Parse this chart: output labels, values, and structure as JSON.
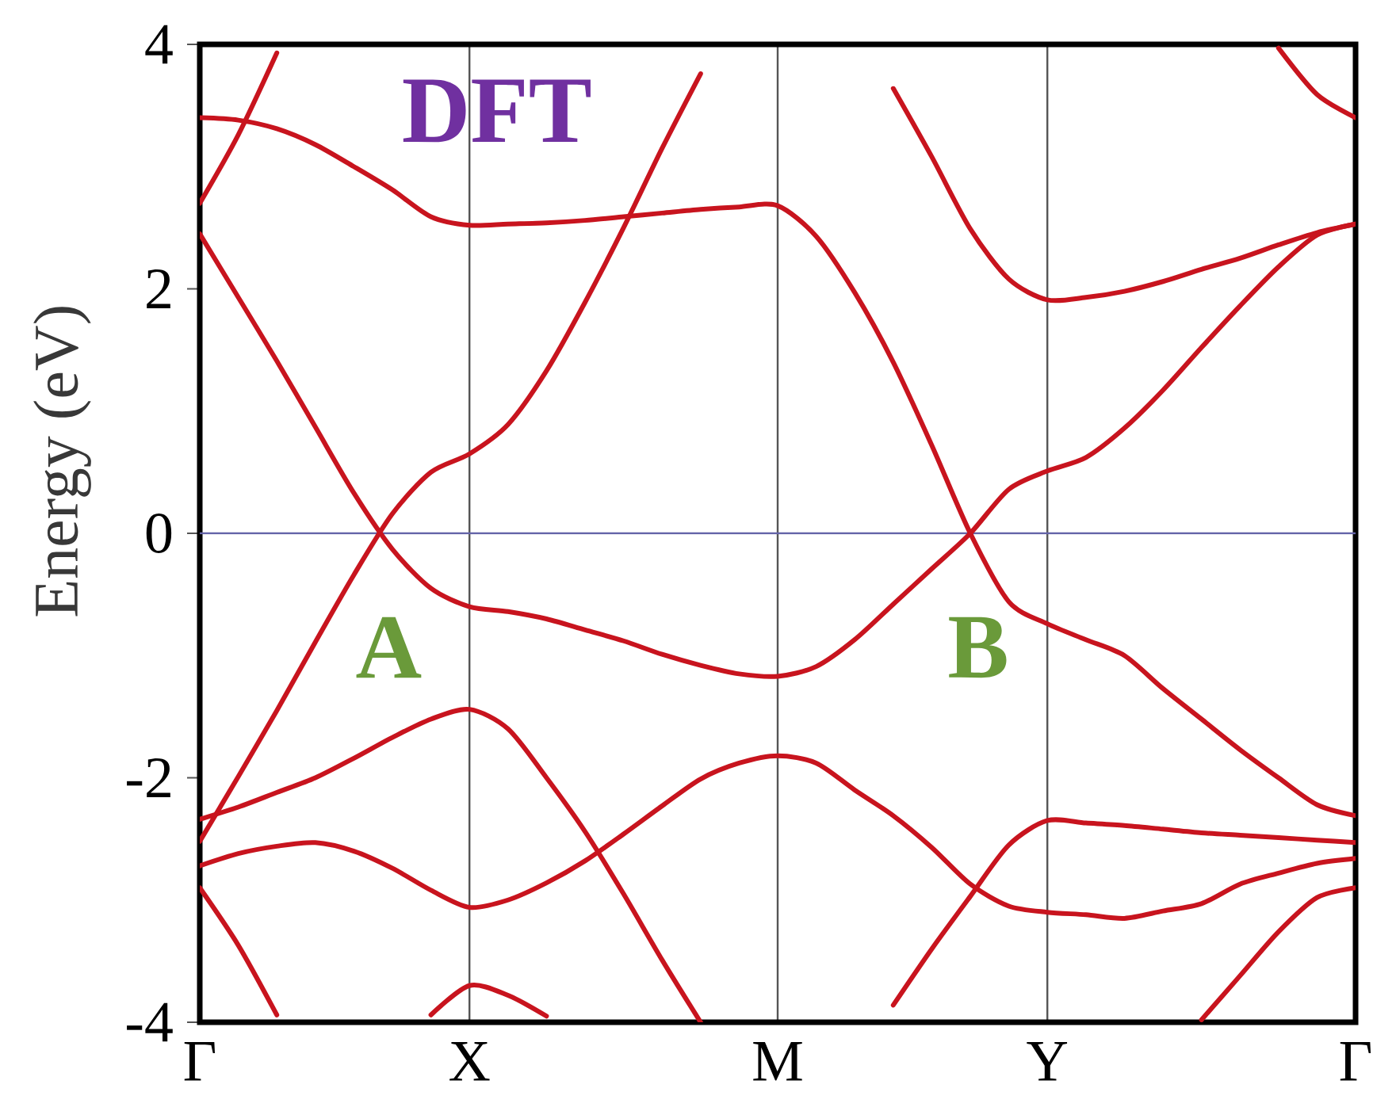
{
  "chart_data": {
    "type": "line",
    "title": "DFT",
    "ylabel": "Energy (eV)",
    "categories": [
      "Γ",
      null,
      null,
      null,
      null,
      null,
      null,
      "X",
      null,
      null,
      null,
      null,
      null,
      null,
      null,
      "M",
      null,
      null,
      null,
      null,
      null,
      null,
      "Y",
      null,
      null,
      null,
      null,
      null,
      null,
      null,
      "Γ"
    ],
    "ylim": [
      -4,
      4
    ],
    "yticks": [
      -4,
      -2,
      0,
      2,
      4
    ],
    "grid": "x",
    "line_style": "solid",
    "ref_lines": [
      {
        "axis": "y",
        "value": 0,
        "color": "#6464a8"
      }
    ],
    "annotations": [
      {
        "text": "A",
        "y": 0
      },
      {
        "text": "B",
        "y": 0
      }
    ],
    "series": [
      {
        "color": "#c8141e",
        "values": [
          2.7,
          3.26,
          3.93,
          null,
          null,
          null,
          null,
          null,
          null,
          null,
          null,
          null,
          null,
          null,
          null,
          null,
          null,
          null,
          null,
          null,
          null,
          null,
          null,
          null,
          null,
          null,
          null,
          null,
          null,
          null,
          null
        ]
      },
      {
        "color": "#c8141e",
        "values": [
          3.4,
          3.38,
          3.31,
          3.18,
          3.0,
          2.81,
          2.59,
          2.52,
          2.53,
          2.54,
          2.56,
          2.59,
          2.62,
          2.65,
          2.67,
          2.68,
          2.43,
          1.97,
          1.4,
          0.72,
          0,
          -0.56,
          -0.74,
          -0.87,
          -1.0,
          -1.27,
          -1.52,
          -1.77,
          -2.0,
          -2.22,
          -2.31
        ]
      },
      {
        "color": "#c8141e",
        "values": [
          2.45,
          1.93,
          1.41,
          0.87,
          0.33,
          -0.13,
          -0.45,
          -0.6,
          -0.64,
          -0.7,
          -0.79,
          -0.88,
          -0.99,
          -1.08,
          -1.15,
          -1.17,
          -1.09,
          -0.87,
          -0.58,
          -0.29,
          0,
          0.36,
          0.51,
          0.62,
          0.86,
          1.17,
          1.52,
          1.86,
          2.18,
          2.44,
          2.53
        ]
      },
      {
        "color": "#c8141e",
        "values": [
          -2.52,
          -1.99,
          -1.45,
          -0.89,
          -0.34,
          0.16,
          0.5,
          0.65,
          0.89,
          1.33,
          1.89,
          2.5,
          3.15,
          3.76,
          null,
          null,
          null,
          null,
          null,
          null,
          null,
          null,
          null,
          null,
          null,
          null,
          null,
          null,
          null,
          null,
          null
        ]
      },
      {
        "color": "#c8141e",
        "values": [
          null,
          null,
          null,
          null,
          null,
          null,
          null,
          null,
          null,
          null,
          null,
          null,
          null,
          null,
          null,
          null,
          null,
          null,
          3.64,
          3.08,
          2.49,
          2.08,
          1.91,
          1.93,
          1.98,
          2.06,
          2.16,
          2.25,
          2.36,
          2.46,
          2.53
        ]
      },
      {
        "color": "#c8141e",
        "values": [
          null,
          null,
          null,
          null,
          null,
          null,
          null,
          null,
          null,
          null,
          null,
          null,
          null,
          null,
          null,
          null,
          null,
          null,
          null,
          null,
          null,
          null,
          null,
          null,
          null,
          null,
          null,
          null,
          3.97,
          3.59,
          3.4
        ]
      },
      {
        "color": "#c8141e",
        "values": [
          -2.34,
          -2.24,
          -2.12,
          -2.0,
          -1.84,
          -1.67,
          -1.52,
          -1.44,
          -1.6,
          -2.0,
          -2.44,
          -2.95,
          -3.49,
          -4.0,
          null,
          null,
          null,
          null,
          null,
          null,
          null,
          null,
          null,
          null,
          null,
          null,
          null,
          null,
          null,
          null,
          null
        ]
      },
      {
        "color": "#c8141e",
        "values": [
          -2.72,
          -2.62,
          -2.56,
          -2.53,
          -2.6,
          -2.74,
          -2.92,
          -3.06,
          -3.0,
          -2.86,
          -2.68,
          -2.46,
          -2.23,
          -2.01,
          -1.88,
          -1.82,
          -1.88,
          -2.1,
          -2.31,
          -2.57,
          -2.87,
          -3.05,
          -3.1,
          -3.12,
          -3.15,
          -3.09,
          -3.03,
          -2.87,
          -2.78,
          -2.7,
          -2.66
        ]
      },
      {
        "color": "#c8141e",
        "values": [
          null,
          null,
          null,
          null,
          null,
          null,
          null,
          null,
          null,
          null,
          null,
          null,
          null,
          null,
          null,
          null,
          null,
          null,
          -3.86,
          -3.4,
          -2.97,
          -2.55,
          -2.35,
          -2.37,
          -2.39,
          -2.42,
          -2.45,
          -2.47,
          -2.49,
          -2.51,
          -2.53
        ]
      },
      {
        "color": "#c8141e",
        "values": [
          null,
          null,
          null,
          null,
          null,
          null,
          -3.94,
          -3.7,
          -3.78,
          -3.95,
          null,
          null,
          null,
          null,
          null,
          null,
          null,
          null,
          null,
          null,
          null,
          null,
          null,
          null,
          null,
          null,
          null,
          null,
          null,
          null,
          null
        ]
      },
      {
        "color": "#c8141e",
        "values": [
          -2.9,
          -3.37,
          -3.94,
          null,
          null,
          null,
          null,
          null,
          null,
          null,
          null,
          null,
          null,
          null,
          null,
          null,
          null,
          null,
          null,
          null,
          null,
          null,
          null,
          null,
          null,
          null,
          null,
          null,
          null,
          null,
          null
        ]
      },
      {
        "color": "#c8141e",
        "values": [
          null,
          null,
          null,
          null,
          null,
          null,
          null,
          null,
          null,
          null,
          null,
          null,
          null,
          null,
          null,
          null,
          null,
          null,
          null,
          null,
          null,
          null,
          null,
          null,
          null,
          null,
          -3.98,
          -3.62,
          -3.26,
          -2.98,
          -2.9
        ]
      }
    ]
  }
}
